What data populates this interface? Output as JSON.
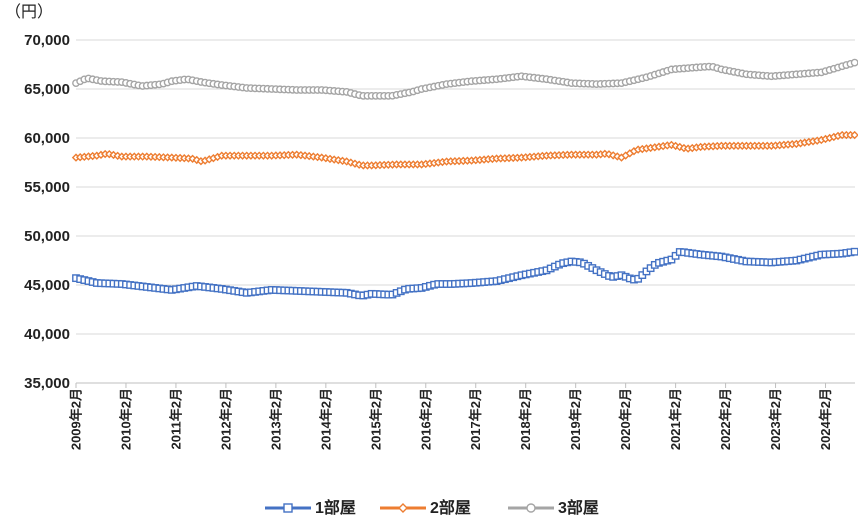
{
  "chart_data": {
    "type": "line",
    "unit_label": "（円）",
    "ylim": [
      35000,
      70000
    ],
    "y_ticks": [
      "35,000",
      "40,000",
      "45,000",
      "50,000",
      "55,000",
      "60,000",
      "65,000",
      "70,000"
    ],
    "x_tick_labels": [
      "2009年2月",
      "2010年2月",
      "2011年2月",
      "2012年2月",
      "2013年2月",
      "2014年2月",
      "2015年2月",
      "2016年2月",
      "2017年2月",
      "2018年2月",
      "2019年2月",
      "2020年2月",
      "2021年2月",
      "2022年2月",
      "2023年2月",
      "2024年2月"
    ],
    "x_range": [
      2009.08,
      2024.67
    ],
    "grid": true,
    "legend_position": "bottom",
    "series": [
      {
        "name": "1部屋",
        "color": "#4472C4",
        "marker": "square",
        "x": [
          2009.08,
          2009.5,
          2010.0,
          2010.5,
          2011.0,
          2011.5,
          2012.0,
          2012.5,
          2013.0,
          2013.5,
          2014.0,
          2014.5,
          2014.8,
          2015.0,
          2015.4,
          2015.7,
          2016.0,
          2016.3,
          2016.6,
          2017.0,
          2017.5,
          2018.0,
          2018.5,
          2018.8,
          2019.0,
          2019.2,
          2019.5,
          2019.8,
          2020.0,
          2020.2,
          2020.3,
          2020.5,
          2020.7,
          2021.0,
          2021.17,
          2021.3,
          2021.6,
          2022.0,
          2022.5,
          2023.0,
          2023.5,
          2024.0,
          2024.4,
          2024.67
        ],
        "values": [
          45700,
          45200,
          45100,
          44800,
          44500,
          44900,
          44600,
          44200,
          44500,
          44400,
          44300,
          44200,
          43900,
          44100,
          44000,
          44600,
          44700,
          45100,
          45100,
          45200,
          45400,
          46000,
          46500,
          47200,
          47400,
          47300,
          46500,
          45800,
          46000,
          45600,
          45500,
          46400,
          47200,
          47600,
          48400,
          48300,
          48100,
          47900,
          47400,
          47300,
          47500,
          48100,
          48200,
          48400
        ]
      },
      {
        "name": "2部屋",
        "color": "#ED7D31",
        "marker": "diamond",
        "x": [
          2009.08,
          2009.5,
          2009.7,
          2010.0,
          2010.5,
          2011.0,
          2011.4,
          2011.6,
          2012.0,
          2012.5,
          2013.0,
          2013.5,
          2014.0,
          2014.5,
          2014.8,
          2015.0,
          2015.5,
          2016.0,
          2016.5,
          2017.0,
          2017.5,
          2018.0,
          2018.5,
          2019.0,
          2019.5,
          2019.7,
          2020.0,
          2020.3,
          2020.6,
          2021.0,
          2021.3,
          2021.6,
          2022.0,
          2022.5,
          2023.0,
          2023.5,
          2024.0,
          2024.4,
          2024.67
        ],
        "values": [
          58000,
          58200,
          58400,
          58100,
          58100,
          58000,
          57900,
          57600,
          58200,
          58200,
          58200,
          58300,
          58000,
          57600,
          57200,
          57200,
          57300,
          57300,
          57600,
          57700,
          57900,
          58000,
          58200,
          58300,
          58300,
          58400,
          58000,
          58800,
          59000,
          59300,
          58900,
          59100,
          59200,
          59200,
          59200,
          59400,
          59800,
          60300,
          60300
        ]
      },
      {
        "name": "3部屋",
        "color": "#A5A5A5",
        "marker": "circle",
        "x": [
          2009.08,
          2009.3,
          2009.6,
          2010.0,
          2010.4,
          2010.8,
          2011.0,
          2011.3,
          2011.6,
          2012.0,
          2012.5,
          2013.0,
          2013.5,
          2014.0,
          2014.5,
          2014.8,
          2015.0,
          2015.4,
          2015.8,
          2016.0,
          2016.5,
          2017.0,
          2017.5,
          2018.0,
          2018.5,
          2019.0,
          2019.5,
          2020.0,
          2020.5,
          2021.0,
          2021.5,
          2021.8,
          2022.0,
          2022.5,
          2023.0,
          2023.5,
          2024.0,
          2024.4,
          2024.67
        ],
        "values": [
          65600,
          66100,
          65800,
          65700,
          65300,
          65500,
          65800,
          66000,
          65700,
          65400,
          65100,
          65000,
          64900,
          64900,
          64700,
          64300,
          64300,
          64300,
          64700,
          65000,
          65500,
          65800,
          66000,
          66300,
          66000,
          65600,
          65500,
          65600,
          66200,
          67000,
          67200,
          67300,
          67000,
          66500,
          66300,
          66500,
          66700,
          67300,
          67700
        ]
      }
    ]
  }
}
